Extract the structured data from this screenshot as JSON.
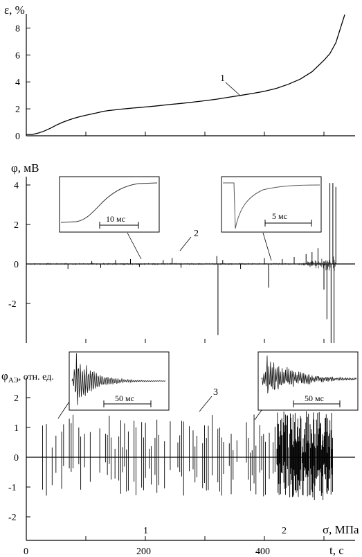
{
  "chart_data": [
    {
      "type": "line",
      "panel": "strain",
      "ylabel": "ε, %",
      "ylim": [
        0,
        9
      ],
      "yticks": [
        0,
        2,
        4,
        6,
        8
      ],
      "curve_label": "1",
      "x": [
        0,
        10,
        20,
        30,
        40,
        50,
        60,
        70,
        80,
        90,
        100,
        110,
        120,
        130,
        140,
        150,
        160,
        170,
        180,
        190,
        200,
        220,
        240,
        260,
        280,
        300,
        320,
        340,
        360,
        380,
        400,
        420,
        440,
        460,
        480,
        500,
        510,
        520,
        525,
        530,
        535
      ],
      "y": [
        0.1,
        0.1,
        0.2,
        0.35,
        0.55,
        0.78,
        0.98,
        1.15,
        1.3,
        1.42,
        1.52,
        1.62,
        1.72,
        1.82,
        1.88,
        1.93,
        1.98,
        2.02,
        2.06,
        2.1,
        2.14,
        2.22,
        2.32,
        2.4,
        2.5,
        2.6,
        2.72,
        2.86,
        3.0,
        3.14,
        3.3,
        3.52,
        3.82,
        4.2,
        4.75,
        5.6,
        6.1,
        6.9,
        7.6,
        8.3,
        9.0
      ]
    },
    {
      "type": "line",
      "panel": "potential",
      "ylabel": "φ, мВ",
      "ylim": [
        -4,
        4.5
      ],
      "yticks": [
        -2,
        0,
        2,
        4
      ],
      "curve_label": "2",
      "spikes": [
        {
          "x": 70,
          "y": -0.25
        },
        {
          "x": 110,
          "y": 0.15
        },
        {
          "x": 125,
          "y": -0.2
        },
        {
          "x": 150,
          "y": 0.2
        },
        {
          "x": 175,
          "y": 0.25
        },
        {
          "x": 190,
          "y": -0.15
        },
        {
          "x": 230,
          "y": 0.2
        },
        {
          "x": 245,
          "y": 0.3
        },
        {
          "x": 260,
          "y": -0.2
        },
        {
          "x": 320,
          "y": 0.4
        },
        {
          "x": 322,
          "y": -3.6
        },
        {
          "x": 330,
          "y": 0.2
        },
        {
          "x": 360,
          "y": -0.25
        },
        {
          "x": 400,
          "y": 0.3
        },
        {
          "x": 407,
          "y": -1.2
        },
        {
          "x": 430,
          "y": 0.25
        },
        {
          "x": 450,
          "y": 0.35
        },
        {
          "x": 470,
          "y": 0.5
        },
        {
          "x": 480,
          "y": 0.6
        },
        {
          "x": 490,
          "y": 0.8
        },
        {
          "x": 500,
          "y": -1.3
        },
        {
          "x": 505,
          "y": -2.8
        },
        {
          "x": 510,
          "y": 4.1
        },
        {
          "x": 512,
          "y": -4.0
        },
        {
          "x": 515,
          "y": 4.1
        },
        {
          "x": 517,
          "y": -4.0
        },
        {
          "x": 520,
          "y": 3.9
        }
      ],
      "inset_left": {
        "scale_label": "10 мс"
      },
      "inset_right": {
        "scale_label": "5 мс"
      }
    },
    {
      "type": "line",
      "panel": "acoustic",
      "ylabel": "φ",
      "ylabel_sub": "АЭ",
      "ylabel_suffix": ", отн. ед.",
      "ylim": [
        -2.3,
        2.5
      ],
      "yticks": [
        -2,
        -1,
        0,
        1,
        2
      ],
      "curve_label": "3",
      "xlabel": "t, с",
      "xlim": [
        0,
        550
      ],
      "xticks": [
        0,
        200,
        400
      ],
      "sigma_label": "σ, МПа",
      "sigma_ticks": [
        {
          "x": 195,
          "label": "1"
        },
        {
          "x": 395,
          "label": "2"
        }
      ],
      "inset_left": {
        "scale_label": "50 мс"
      },
      "inset_right": {
        "scale_label": "50 мс"
      }
    }
  ]
}
